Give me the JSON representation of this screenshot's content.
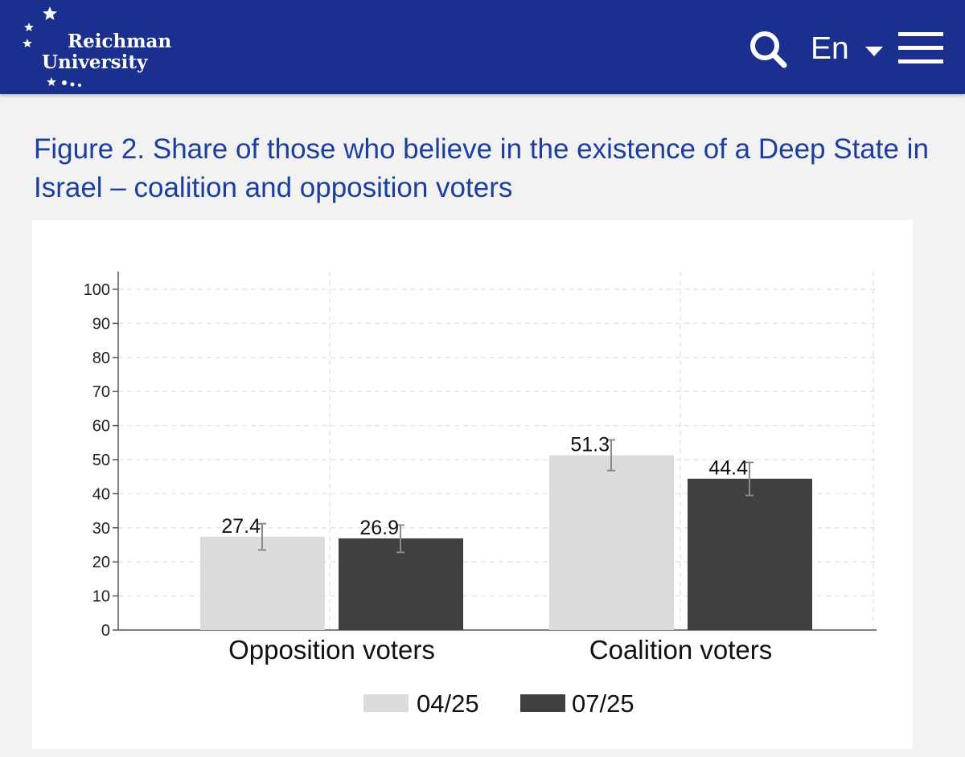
{
  "header": {
    "logo": {
      "line1": "Reichman",
      "line2": "University"
    },
    "search_icon": "search-icon",
    "language_label": "En",
    "language_chevron_icon": "chevron-down-icon",
    "menu_icon": "hamburger-menu-icon",
    "background_color": "#1b2f8f"
  },
  "figure": {
    "title": "Figure 2. Share of those who believe in the existence of a Deep State in Israel – coalition and opposition voters"
  },
  "chart_data": {
    "type": "bar",
    "categories": [
      "Opposition voters",
      "Coalition voters"
    ],
    "series": [
      {
        "name": "04/25",
        "color": "#dcdcdc",
        "values": [
          27.4,
          51.3
        ],
        "labels": [
          "27.4",
          "51.3"
        ],
        "ci_low": [
          23.5,
          46.8
        ],
        "ci_high": [
          31.2,
          55.8
        ]
      },
      {
        "name": "07/25",
        "color": "#404040",
        "values": [
          26.9,
          44.4
        ],
        "labels": [
          "26.9",
          "44.4"
        ],
        "ci_low": [
          22.8,
          39.5
        ],
        "ci_high": [
          30.8,
          49.2
        ]
      }
    ],
    "ylim": [
      0,
      100
    ],
    "yticks": [
      "0",
      "10",
      "20",
      "30",
      "40",
      "50",
      "60",
      "70",
      "80",
      "90",
      "100"
    ],
    "grid": true,
    "error_bars": true,
    "legend_position": "bottom",
    "title": "",
    "xlabel": "",
    "ylabel": ""
  }
}
